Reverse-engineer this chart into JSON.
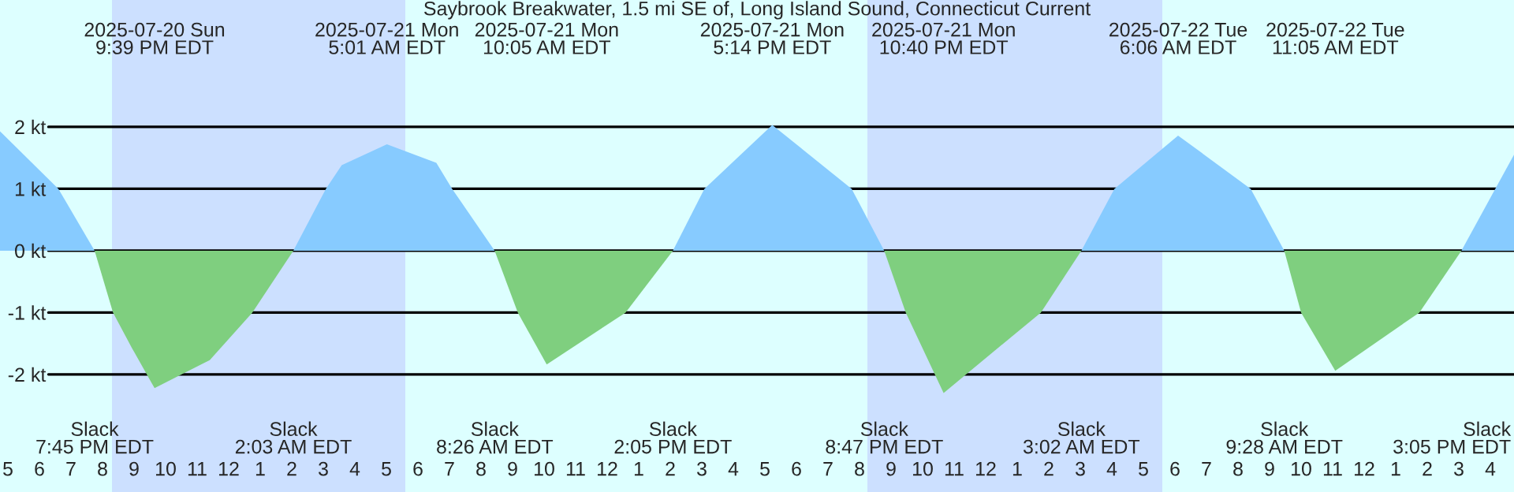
{
  "chart_data": {
    "type": "area",
    "title": "Saybrook Breakwater, 1.5 mi SE of, Long Island Sound, Connecticut Current",
    "x": [
      "2025-07-20T16:45",
      "2025-07-20T18:36",
      "2025-07-20T19:45",
      "2025-07-20T20:20",
      "2025-07-20T20:55",
      "2025-07-20T21:39",
      "2025-07-20T23:24",
      "2025-07-21T00:45",
      "2025-07-21T02:03",
      "2025-07-21T03:05",
      "2025-07-21T03:35",
      "2025-07-21T05:01",
      "2025-07-21T06:35",
      "2025-07-21T07:05",
      "2025-07-21T08:26",
      "2025-07-21T09:10",
      "2025-07-21T10:05",
      "2025-07-21T12:35",
      "2025-07-21T14:05",
      "2025-07-21T15:05",
      "2025-07-21T17:14",
      "2025-07-21T19:45",
      "2025-07-21T20:47",
      "2025-07-21T21:28",
      "2025-07-21T22:40",
      "2025-07-22T01:45",
      "2025-07-22T03:02",
      "2025-07-22T04:05",
      "2025-07-22T06:06",
      "2025-07-22T08:24",
      "2025-07-22T09:28",
      "2025-07-22T10:00",
      "2025-07-22T11:05",
      "2025-07-22T13:45",
      "2025-07-22T15:05",
      "2025-07-22T16:45"
    ],
    "series": [
      {
        "color": "#87cbff",
        "values": [
          1.93,
          1.0,
          0,
          null,
          null,
          null,
          null,
          null,
          0,
          1.0,
          1.38,
          1.72,
          1.42,
          1.0,
          0,
          null,
          null,
          null,
          0,
          1.0,
          2.03,
          1.0,
          0,
          null,
          null,
          null,
          0,
          1.0,
          1.86,
          1.0,
          0,
          null,
          null,
          null,
          0,
          1.55
        ]
      },
      {
        "color": "#7fcf7f",
        "values": [
          null,
          null,
          0,
          -1.0,
          -1.56,
          -2.22,
          -1.77,
          -1.0,
          0,
          null,
          null,
          null,
          null,
          null,
          0,
          -1.0,
          -1.84,
          -1.0,
          0,
          null,
          null,
          null,
          0,
          -1.0,
          -2.3,
          -1.0,
          0,
          null,
          null,
          null,
          0,
          -1.0,
          -1.94,
          -1.0,
          0,
          null
        ]
      }
    ],
    "xlim": [
      "2025-07-20T16:45",
      "2025-07-22T16:45"
    ],
    "xticks": [
      {
        "value": "2025-07-20T17:00",
        "label": "5"
      },
      {
        "value": "2025-07-20T18:00",
        "label": "6"
      },
      {
        "value": "2025-07-20T19:00",
        "label": "7"
      },
      {
        "value": "2025-07-20T20:00",
        "label": "8"
      },
      {
        "value": "2025-07-20T21:00",
        "label": "9"
      },
      {
        "value": "2025-07-20T22:00",
        "label": "10"
      },
      {
        "value": "2025-07-20T23:00",
        "label": "11"
      },
      {
        "value": "2025-07-21T00:00",
        "label": "12"
      },
      {
        "value": "2025-07-21T01:00",
        "label": "1"
      },
      {
        "value": "2025-07-21T02:00",
        "label": "2"
      },
      {
        "value": "2025-07-21T03:00",
        "label": "3"
      },
      {
        "value": "2025-07-21T04:00",
        "label": "4"
      },
      {
        "value": "2025-07-21T05:00",
        "label": "5"
      },
      {
        "value": "2025-07-21T06:00",
        "label": "6"
      },
      {
        "value": "2025-07-21T07:00",
        "label": "7"
      },
      {
        "value": "2025-07-21T08:00",
        "label": "8"
      },
      {
        "value": "2025-07-21T09:00",
        "label": "9"
      },
      {
        "value": "2025-07-21T10:00",
        "label": "10"
      },
      {
        "value": "2025-07-21T11:00",
        "label": "11"
      },
      {
        "value": "2025-07-21T12:00",
        "label": "12"
      },
      {
        "value": "2025-07-21T13:00",
        "label": "1"
      },
      {
        "value": "2025-07-21T14:00",
        "label": "2"
      },
      {
        "value": "2025-07-21T15:00",
        "label": "3"
      },
      {
        "value": "2025-07-21T16:00",
        "label": "4"
      },
      {
        "value": "2025-07-21T17:00",
        "label": "5"
      },
      {
        "value": "2025-07-21T18:00",
        "label": "6"
      },
      {
        "value": "2025-07-21T19:00",
        "label": "7"
      },
      {
        "value": "2025-07-21T20:00",
        "label": "8"
      },
      {
        "value": "2025-07-21T21:00",
        "label": "9"
      },
      {
        "value": "2025-07-21T22:00",
        "label": "10"
      },
      {
        "value": "2025-07-21T23:00",
        "label": "11"
      },
      {
        "value": "2025-07-22T00:00",
        "label": "12"
      },
      {
        "value": "2025-07-22T01:00",
        "label": "1"
      },
      {
        "value": "2025-07-22T02:00",
        "label": "2"
      },
      {
        "value": "2025-07-22T03:00",
        "label": "3"
      },
      {
        "value": "2025-07-22T04:00",
        "label": "4"
      },
      {
        "value": "2025-07-22T05:00",
        "label": "5"
      },
      {
        "value": "2025-07-22T06:00",
        "label": "6"
      },
      {
        "value": "2025-07-22T07:00",
        "label": "7"
      },
      {
        "value": "2025-07-22T08:00",
        "label": "8"
      },
      {
        "value": "2025-07-22T09:00",
        "label": "9"
      },
      {
        "value": "2025-07-22T10:00",
        "label": "10"
      },
      {
        "value": "2025-07-22T11:00",
        "label": "11"
      },
      {
        "value": "2025-07-22T12:00",
        "label": "12"
      },
      {
        "value": "2025-07-22T13:00",
        "label": "1"
      },
      {
        "value": "2025-07-22T14:00",
        "label": "2"
      },
      {
        "value": "2025-07-22T15:00",
        "label": "3"
      },
      {
        "value": "2025-07-22T16:00",
        "label": "4"
      }
    ],
    "ylim": [
      -3.9,
      4.05
    ],
    "yticks": [
      {
        "value": -2,
        "label": "-2 kt"
      },
      {
        "value": -1,
        "label": "-1 kt"
      },
      {
        "value": 0,
        "label": "0 kt"
      },
      {
        "value": 1,
        "label": "1 kt"
      },
      {
        "value": 2,
        "label": "2 kt"
      }
    ],
    "grid": "y",
    "bands": [
      {
        "axis": "x",
        "from": "2025-07-20T20:18",
        "to": "2025-07-21T05:36",
        "color": "#cce0ff"
      },
      {
        "axis": "x",
        "from": "2025-07-21T20:15",
        "to": "2025-07-22T05:36",
        "color": "#cce0ff"
      }
    ],
    "annotations": [
      "2025-07-20 Sun\n9:39 PM EDT",
      "2025-07-21 Mon\n5:01 AM EDT",
      "2025-07-21 Mon\n10:05 AM EDT",
      "2025-07-21 Mon\n5:14 PM EDT",
      "2025-07-21 Mon\n10:40 PM EDT",
      "2025-07-22 Tue\n6:06 AM EDT",
      "2025-07-22 Tue\n11:05 AM EDT",
      "Slack\n7:45 PM EDT",
      "Slack\n2:03 AM EDT",
      "Slack\n8:26 AM EDT",
      "Slack\n2:05 PM EDT",
      "Slack\n8:47 PM EDT",
      "Slack\n3:02 AM EDT",
      "Slack\n9:28 AM EDT",
      "Slack\n3:05 PM EDT"
    ]
  }
}
